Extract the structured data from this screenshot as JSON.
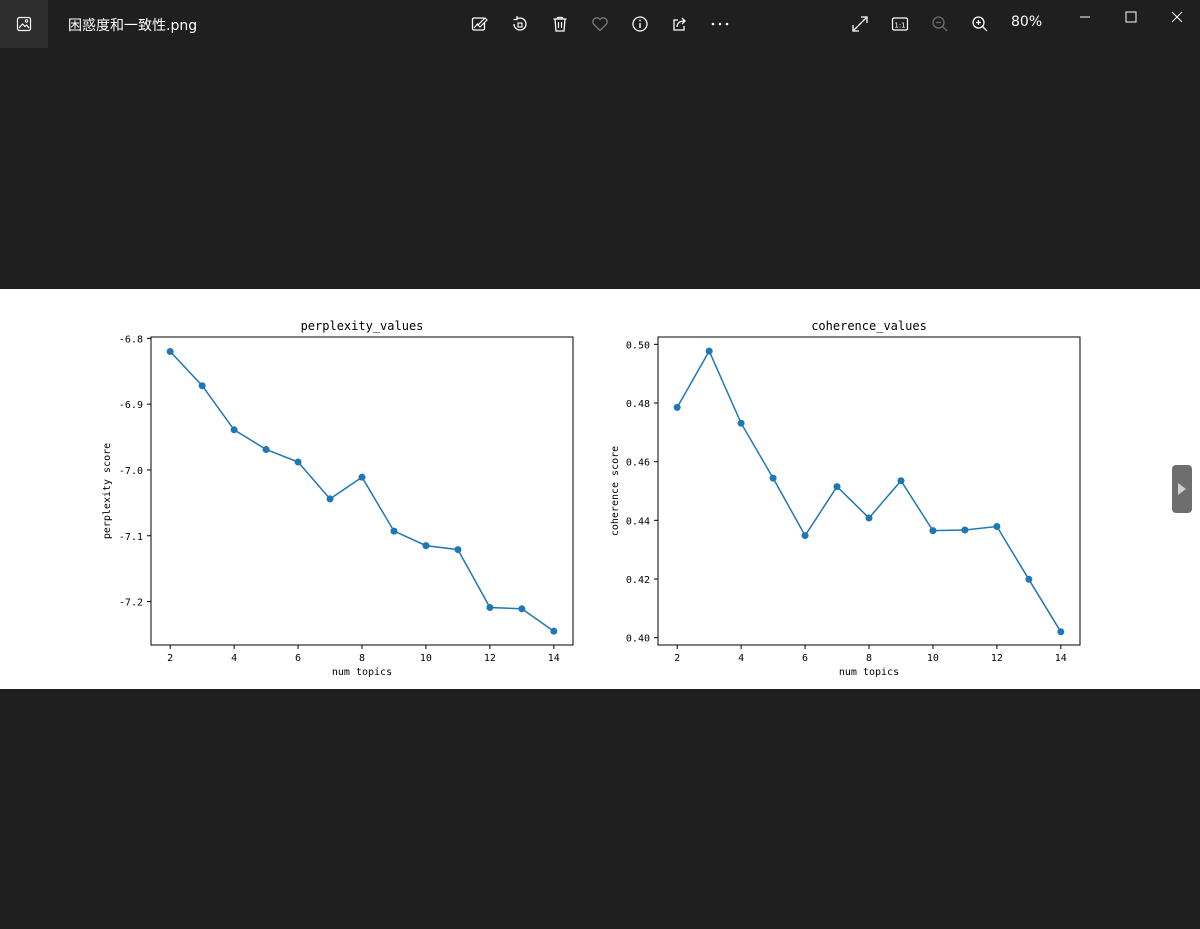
{
  "window": {
    "title": "困惑度和一致性.png",
    "zoom": "80%"
  },
  "toolbar": {
    "icons": [
      "edit-image-icon",
      "rotate-icon",
      "delete-icon",
      "favorite-icon",
      "info-icon",
      "share-icon",
      "more-icon"
    ],
    "right_icons": [
      "fullscreen-icon",
      "actual-size-icon",
      "zoom-out-icon",
      "zoom-in-icon"
    ],
    "actual_size_label": "1:1"
  },
  "window_controls": [
    "minimize-icon",
    "maximize-icon",
    "close-icon"
  ],
  "colors": {
    "background": "#1f1f1f",
    "series": "#1f77b4"
  },
  "chart_data": [
    {
      "type": "line",
      "title": "perplexity_values",
      "xlabel": "num topics",
      "ylabel": "perplexity score",
      "x": [
        2,
        3,
        4,
        5,
        6,
        7,
        8,
        9,
        10,
        11,
        12,
        13,
        14
      ],
      "y": [
        -6.82,
        -6.872,
        -6.939,
        -6.969,
        -6.988,
        -7.044,
        -7.011,
        -7.093,
        -7.115,
        -7.121,
        -7.209,
        -7.211,
        -7.245
      ],
      "xticks": [
        2,
        4,
        6,
        8,
        10,
        12,
        14
      ],
      "yticks": [
        -6.8,
        -6.9,
        -7.0,
        -7.1,
        -7.2
      ],
      "ytick_labels": [
        "-6.8",
        "-6.9",
        "-7.0",
        "-7.1",
        "-7.2"
      ],
      "xlim": [
        1.4,
        14.6
      ],
      "ylim": [
        -7.266,
        -6.798
      ],
      "grid": false,
      "marker": "circle"
    },
    {
      "type": "line",
      "title": "coherence_values",
      "xlabel": "num topics",
      "ylabel": "coherence score",
      "x": [
        2,
        3,
        4,
        5,
        6,
        7,
        8,
        9,
        10,
        11,
        12,
        13,
        14
      ],
      "y": [
        0.4785,
        0.4977,
        0.4731,
        0.4544,
        0.4348,
        0.4515,
        0.4408,
        0.4535,
        0.4365,
        0.4367,
        0.4379,
        0.4199,
        0.402
      ],
      "xticks": [
        2,
        4,
        6,
        8,
        10,
        12,
        14
      ],
      "yticks": [
        0.4,
        0.42,
        0.44,
        0.46,
        0.48,
        0.5
      ],
      "ytick_labels": [
        "0.40",
        "0.42",
        "0.44",
        "0.46",
        "0.48",
        "0.50"
      ],
      "xlim": [
        1.4,
        14.6
      ],
      "ylim": [
        0.3975,
        0.5025
      ],
      "grid": false,
      "marker": "circle"
    }
  ]
}
